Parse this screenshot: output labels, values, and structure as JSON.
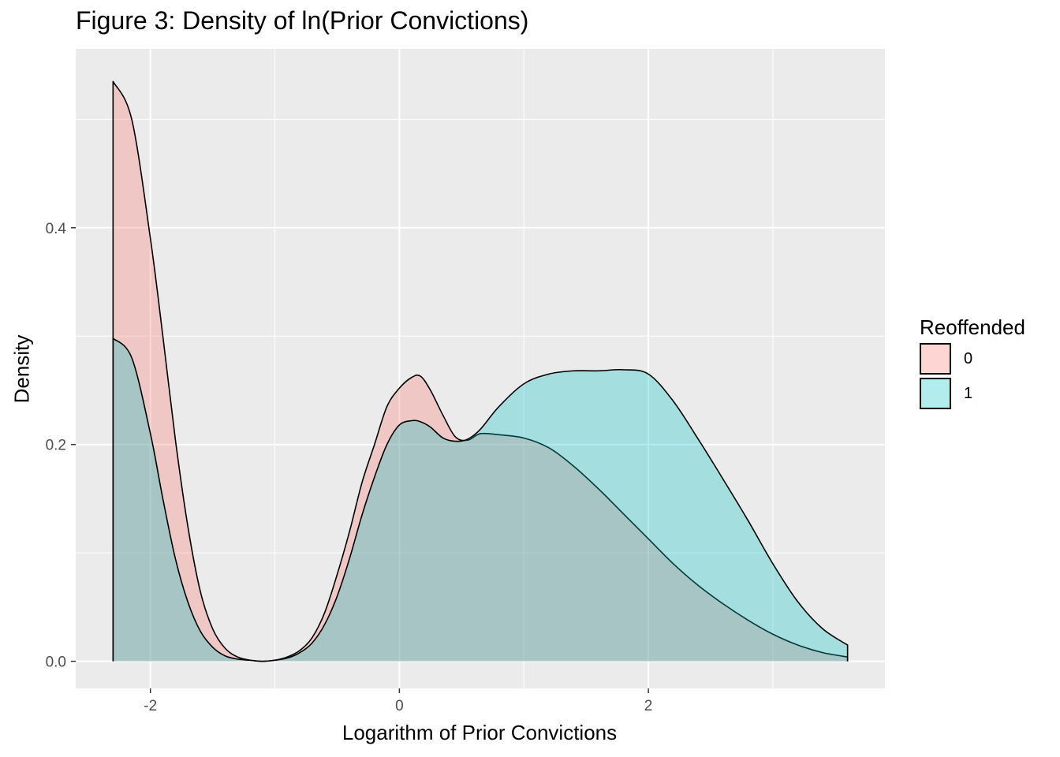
{
  "chart_data": {
    "type": "area",
    "title": "Figure 3: Density of ln(Prior Convictions)",
    "xlabel": "Logarithm of Prior Convictions",
    "ylabel": "Density",
    "xlim": [
      -2.6,
      3.9
    ],
    "ylim": [
      -0.025,
      0.565
    ],
    "x_ticks": [
      -2,
      0,
      2
    ],
    "x_tick_labels": [
      "-2",
      "0",
      "2"
    ],
    "y_ticks": [
      0.0,
      0.2,
      0.4
    ],
    "y_tick_labels": [
      "0.0",
      "0.2",
      "0.4"
    ],
    "grid": true,
    "legend": {
      "title": "Reoffended",
      "position": "right",
      "entries": [
        {
          "label": "0",
          "color": "#F8766D"
        },
        {
          "label": "1",
          "color": "#00BFC4"
        }
      ]
    },
    "series": [
      {
        "name": "0",
        "color": "#F8766D",
        "x": [
          -2.3,
          -2.15,
          -2.0,
          -1.9,
          -1.8,
          -1.7,
          -1.6,
          -1.5,
          -1.4,
          -1.3,
          -1.2,
          -1.1,
          -1.0,
          -0.9,
          -0.8,
          -0.7,
          -0.6,
          -0.5,
          -0.4,
          -0.3,
          -0.2,
          -0.1,
          0.0,
          0.1,
          0.17,
          0.25,
          0.35,
          0.45,
          0.55,
          0.65,
          0.8,
          1.0,
          1.2,
          1.4,
          1.6,
          1.8,
          2.0,
          2.2,
          2.4,
          2.6,
          2.8,
          3.0,
          3.2,
          3.4,
          3.6
        ],
        "y": [
          0.535,
          0.5,
          0.39,
          0.3,
          0.205,
          0.125,
          0.065,
          0.03,
          0.012,
          0.004,
          0.001,
          0.0,
          0.001,
          0.004,
          0.01,
          0.022,
          0.045,
          0.08,
          0.12,
          0.165,
          0.2,
          0.235,
          0.252,
          0.262,
          0.263,
          0.25,
          0.227,
          0.207,
          0.204,
          0.21,
          0.209,
          0.206,
          0.197,
          0.18,
          0.159,
          0.136,
          0.113,
          0.09,
          0.07,
          0.053,
          0.038,
          0.025,
          0.015,
          0.008,
          0.004
        ]
      },
      {
        "name": "1",
        "color": "#00BFC4",
        "x": [
          -2.3,
          -2.15,
          -2.0,
          -1.9,
          -1.8,
          -1.7,
          -1.6,
          -1.5,
          -1.4,
          -1.3,
          -1.2,
          -1.1,
          -1.0,
          -0.9,
          -0.8,
          -0.7,
          -0.6,
          -0.5,
          -0.4,
          -0.3,
          -0.2,
          -0.1,
          0.0,
          0.1,
          0.17,
          0.25,
          0.35,
          0.45,
          0.55,
          0.65,
          0.8,
          1.0,
          1.2,
          1.4,
          1.6,
          1.8,
          2.0,
          2.2,
          2.4,
          2.6,
          2.8,
          3.0,
          3.2,
          3.4,
          3.6
        ],
        "y": [
          0.298,
          0.28,
          0.21,
          0.15,
          0.095,
          0.055,
          0.028,
          0.013,
          0.005,
          0.002,
          0.001,
          0.0,
          0.001,
          0.003,
          0.008,
          0.017,
          0.034,
          0.06,
          0.095,
          0.135,
          0.17,
          0.2,
          0.218,
          0.222,
          0.221,
          0.216,
          0.206,
          0.203,
          0.205,
          0.214,
          0.235,
          0.256,
          0.265,
          0.268,
          0.268,
          0.269,
          0.265,
          0.24,
          0.205,
          0.168,
          0.13,
          0.09,
          0.055,
          0.03,
          0.015
        ]
      }
    ]
  }
}
